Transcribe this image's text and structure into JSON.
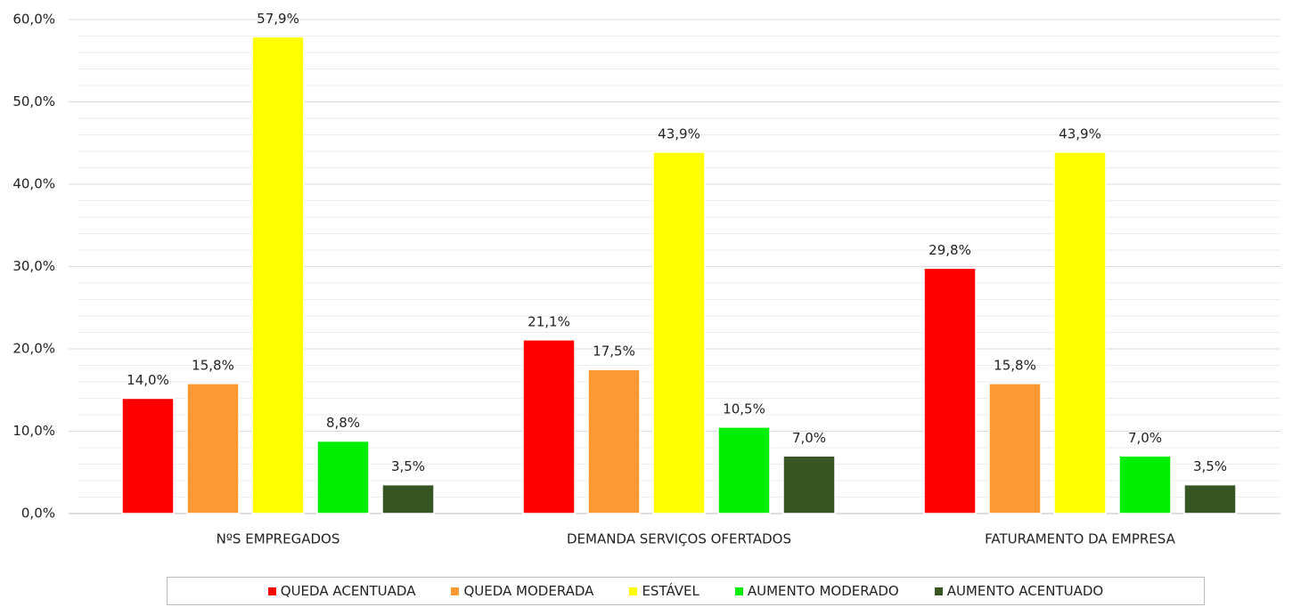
{
  "chart_data": {
    "type": "bar",
    "categories": [
      "NºS EMPREGADOS",
      "DEMANDA SERVIÇOS OFERTADOS",
      "FATURAMENTO DA EMPRESA"
    ],
    "series": [
      {
        "name": "QUEDA ACENTUADA",
        "color": "#ff0000",
        "values": [
          14.0,
          21.1,
          29.8
        ],
        "value_labels": [
          "14,0%",
          "21,1%",
          "29,8%"
        ]
      },
      {
        "name": "QUEDA MODERADA",
        "color": "#ff9933",
        "values": [
          15.8,
          17.5,
          15.8
        ],
        "value_labels": [
          "15,8%",
          "17,5%",
          "15,8%"
        ]
      },
      {
        "name": "ESTÁVEL",
        "color": "#ffff00",
        "values": [
          57.9,
          43.9,
          43.9
        ],
        "value_labels": [
          "57,9%",
          "43,9%",
          "43,9%"
        ]
      },
      {
        "name": "AUMENTO MODERADO",
        "color": "#00ee00",
        "values": [
          8.8,
          10.5,
          7.0
        ],
        "value_labels": [
          "8,8%",
          "10,5%",
          "7,0%"
        ]
      },
      {
        "name": "AUMENTO ACENTUADO",
        "color": "#375623",
        "values": [
          3.5,
          7.0,
          3.5
        ],
        "value_labels": [
          "3,5%",
          "7,0%",
          "3,5%"
        ]
      }
    ],
    "ylim": [
      0,
      60
    ],
    "yticks": [
      {
        "value": 0,
        "label": "0,0%"
      },
      {
        "value": 10,
        "label": "10,0%"
      },
      {
        "value": 20,
        "label": "20,0%"
      },
      {
        "value": 30,
        "label": "30,0%"
      },
      {
        "value": 40,
        "label": "40,0%"
      },
      {
        "value": 50,
        "label": "50,0%"
      },
      {
        "value": 60,
        "label": "60,0%"
      }
    ],
    "minor_yticks": [
      2,
      4,
      6,
      8,
      12,
      14,
      16,
      18,
      22,
      24,
      26,
      28,
      32,
      34,
      36,
      38,
      42,
      44,
      46,
      48,
      52,
      54,
      56,
      58
    ],
    "grid": true,
    "legend": "bottom"
  }
}
